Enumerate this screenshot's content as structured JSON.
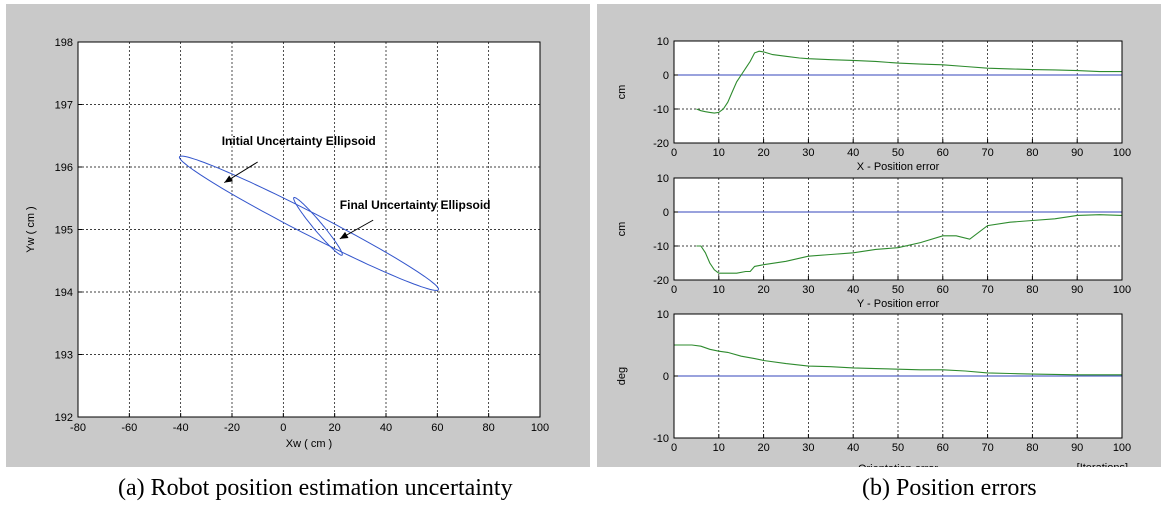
{
  "captions": {
    "a": "(a) Robot position estimation uncertainty",
    "b": "(b) Position errors"
  },
  "chart_data": [
    {
      "id": "uncertainty",
      "type": "line",
      "xlabel": "Xw ( cm )",
      "ylabel": "Yw ( cm )",
      "xlim": [
        -80,
        100
      ],
      "ylim": [
        192,
        198
      ],
      "xticks": [
        -80,
        -60,
        -40,
        -20,
        0,
        20,
        40,
        60,
        80,
        100
      ],
      "yticks": [
        192,
        193,
        194,
        195,
        196,
        197,
        198
      ],
      "grid": true,
      "series": [
        {
          "role": "initial",
          "shape": "ellipse",
          "center": [
            10,
            195.1
          ],
          "semi_major": 50.5,
          "semi_minor": 0.1,
          "direction": [
            98,
            -2.05
          ],
          "color": "#3355cc"
        },
        {
          "role": "final",
          "shape": "ellipse",
          "center": [
            13.5,
            195.05
          ],
          "semi_major": 9.5,
          "semi_minor": 0.055,
          "direction": [
            19,
            -0.9
          ],
          "color": "#3355cc"
        }
      ],
      "annotations": [
        {
          "text": "Initial Uncertainty Ellipsoid",
          "text_at": [
            -24,
            196.35
          ],
          "arrow_from": [
            -10,
            196.08
          ],
          "arrow_to": [
            -23,
            195.75
          ]
        },
        {
          "text": "Final Uncertainty Ellipsoid",
          "text_at": [
            22,
            195.33
          ],
          "arrow_from": [
            35,
            195.15
          ],
          "arrow_to": [
            22,
            194.85
          ]
        }
      ]
    },
    {
      "id": "x-error",
      "type": "line",
      "xlabel": "X - Position error",
      "ylabel": "cm",
      "xlim": [
        0,
        100
      ],
      "ylim": [
        -20,
        10
      ],
      "xticks": [
        0,
        10,
        20,
        30,
        40,
        50,
        60,
        70,
        80,
        90,
        100
      ],
      "yticks": [
        -20,
        -10,
        0,
        10
      ],
      "grid": true,
      "reference_line": 0,
      "series": [
        {
          "color": "#2e8b2e",
          "x": [
            5,
            6,
            7,
            8,
            9,
            10,
            11,
            12,
            13,
            14,
            15,
            16,
            17,
            18,
            19,
            20,
            22,
            25,
            28,
            30,
            35,
            40,
            45,
            50,
            55,
            60,
            65,
            70,
            75,
            80,
            85,
            90,
            95,
            100
          ],
          "y": [
            -10,
            -10.5,
            -10.8,
            -11,
            -11.2,
            -11,
            -10,
            -8,
            -5,
            -2,
            0,
            2,
            4,
            6.5,
            7,
            6.8,
            6,
            5.5,
            5,
            4.8,
            4.5,
            4.3,
            4,
            3.5,
            3.2,
            3,
            2.5,
            2,
            1.8,
            1.6,
            1.5,
            1.3,
            1,
            1
          ]
        }
      ]
    },
    {
      "id": "y-error",
      "type": "line",
      "xlabel": "Y - Position error",
      "ylabel": "cm",
      "xlim": [
        0,
        100
      ],
      "ylim": [
        -20,
        10
      ],
      "xticks": [
        0,
        10,
        20,
        30,
        40,
        50,
        60,
        70,
        80,
        90,
        100
      ],
      "yticks": [
        -20,
        -10,
        0,
        10
      ],
      "grid": true,
      "reference_line": 0,
      "series": [
        {
          "color": "#2e8b2e",
          "x": [
            5,
            6,
            7,
            8,
            9,
            10,
            12,
            14,
            16,
            17,
            18,
            20,
            25,
            30,
            35,
            40,
            45,
            50,
            55,
            60,
            63,
            66,
            70,
            75,
            80,
            85,
            90,
            95,
            100
          ],
          "y": [
            -10,
            -10,
            -12,
            -15,
            -17,
            -18,
            -18,
            -18,
            -17.5,
            -17.5,
            -16,
            -15.5,
            -14.5,
            -13,
            -12.5,
            -12,
            -11,
            -10.5,
            -9,
            -7,
            -7,
            -8,
            -4,
            -3,
            -2.5,
            -2,
            -1,
            -0.8,
            -1
          ]
        }
      ]
    },
    {
      "id": "orientation-error",
      "type": "line",
      "xlabel": "Orientation error",
      "ylabel": "deg",
      "xlim": [
        0,
        100
      ],
      "ylim": [
        -10,
        10
      ],
      "xticks": [
        0,
        10,
        20,
        30,
        40,
        50,
        60,
        70,
        80,
        90,
        100
      ],
      "yticks": [
        -10,
        0,
        10
      ],
      "grid": true,
      "reference_line": 0,
      "corner_note": "[Iterations]",
      "series": [
        {
          "color": "#2e8b2e",
          "x": [
            0,
            4,
            6,
            8,
            10,
            12,
            15,
            18,
            20,
            25,
            30,
            35,
            40,
            45,
            50,
            55,
            60,
            65,
            70,
            75,
            80,
            90,
            100
          ],
          "y": [
            5,
            5,
            4.8,
            4.3,
            4,
            3.8,
            3.2,
            2.8,
            2.5,
            2,
            1.6,
            1.5,
            1.3,
            1.2,
            1.1,
            1,
            1,
            0.8,
            0.5,
            0.4,
            0.3,
            0.2,
            0.2
          ]
        }
      ]
    }
  ]
}
